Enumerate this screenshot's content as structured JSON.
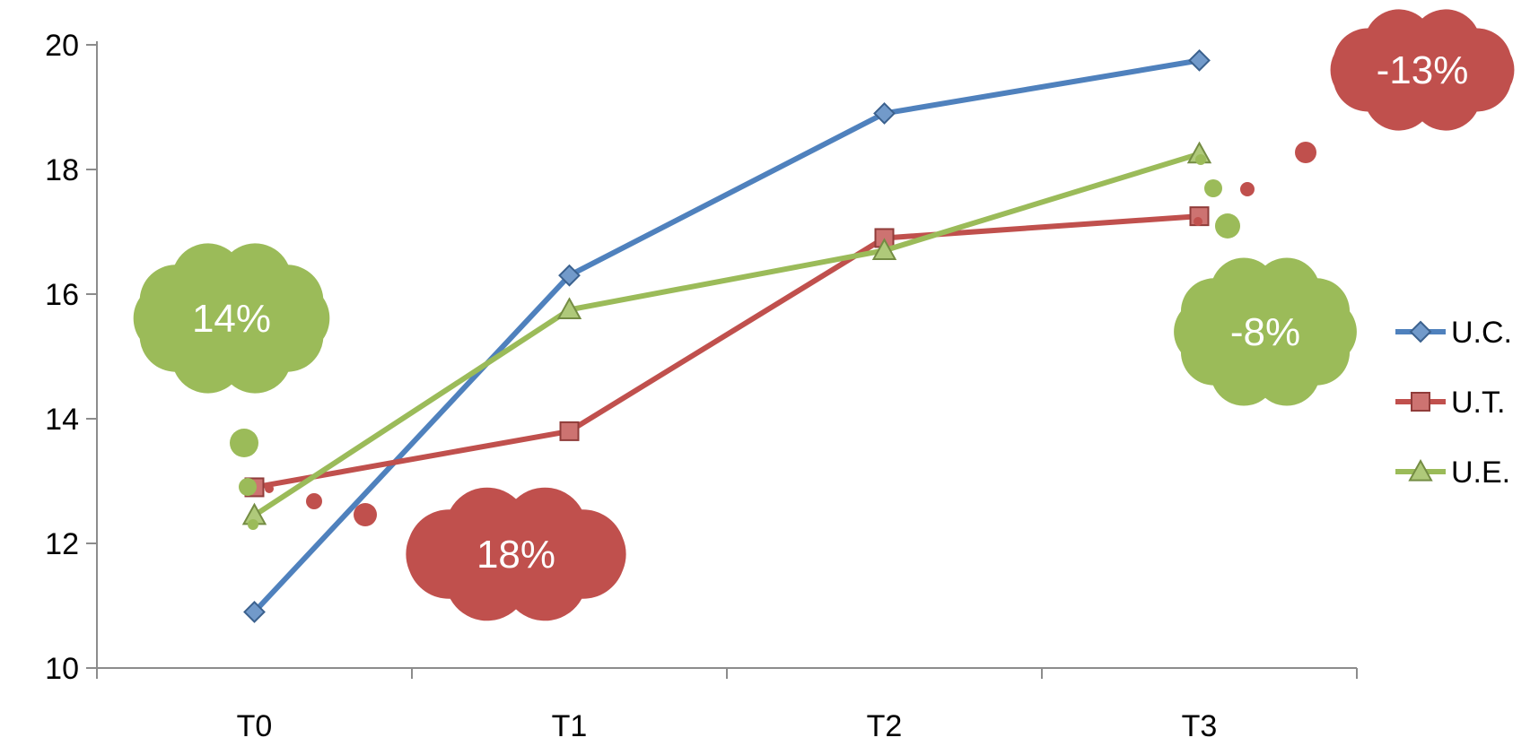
{
  "chart_data": {
    "type": "line",
    "title": "",
    "xlabel": "",
    "ylabel": "",
    "categories": [
      "T0",
      "T1",
      "T2",
      "T3"
    ],
    "ylim": [
      10,
      20
    ],
    "yticks": [
      10,
      12,
      14,
      16,
      18,
      20
    ],
    "grid": false,
    "legend_position": "right",
    "series": [
      {
        "name": "U.C.",
        "color": "#4f81bd",
        "marker": "diamond",
        "values": [
          10.9,
          16.3,
          18.9,
          19.75
        ]
      },
      {
        "name": "U.T.",
        "color": "#c0504d",
        "marker": "square",
        "values": [
          12.9,
          13.8,
          16.9,
          17.25
        ]
      },
      {
        "name": "U.E.",
        "color": "#9bbb59",
        "marker": "triangle",
        "values": [
          12.45,
          15.75,
          16.7,
          18.25
        ]
      }
    ],
    "annotations": [
      {
        "text": "14%",
        "color": "#9bbb59",
        "near": "T0",
        "series": "U.E."
      },
      {
        "text": "18%",
        "color": "#c0504d",
        "near": "T0",
        "series": "U.T."
      },
      {
        "text": "-13%",
        "color": "#c0504d",
        "near": "T3",
        "series": "U.T."
      },
      {
        "text": "-8%",
        "color": "#9bbb59",
        "near": "T3",
        "series": "U.E."
      }
    ]
  }
}
